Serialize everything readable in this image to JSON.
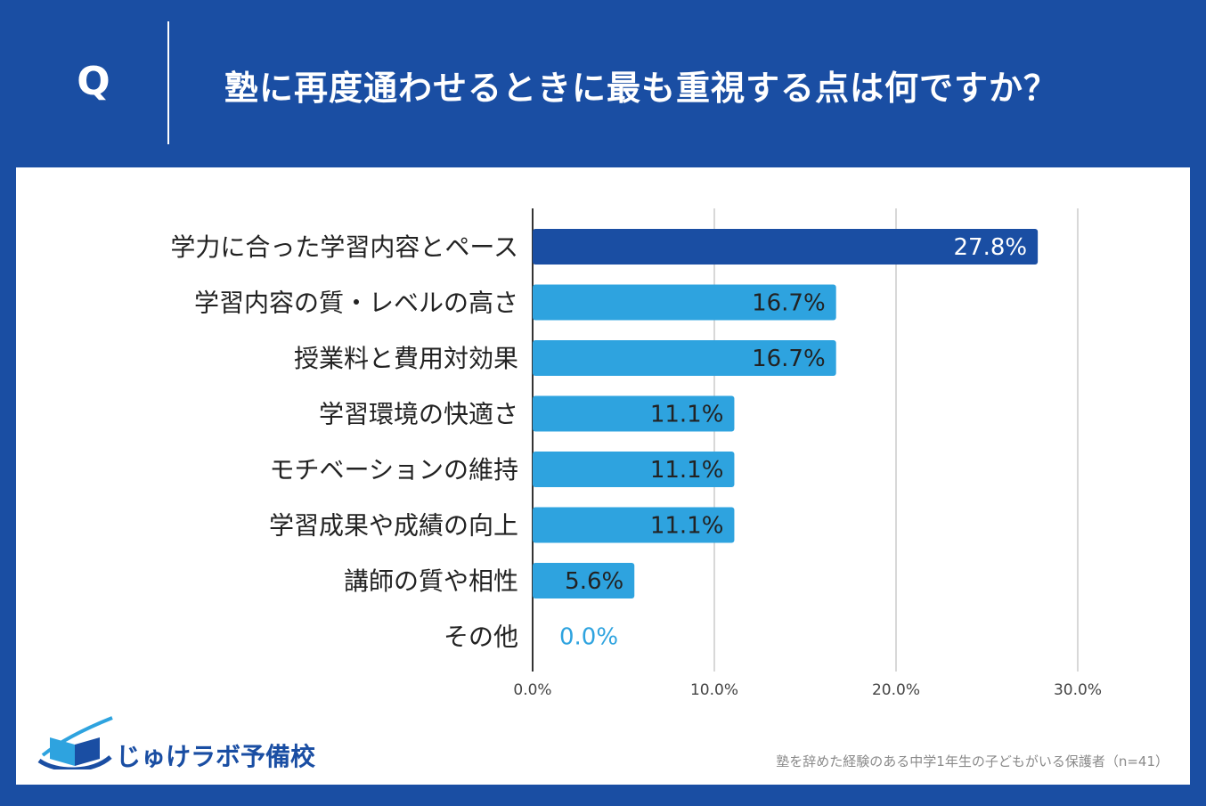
{
  "header": {
    "q_label": "Q",
    "question": "塾に再度通わせるときに最も重視する点は何ですか？"
  },
  "chart_data": {
    "type": "bar",
    "orientation": "horizontal",
    "categories": [
      "学力に合った学習内容とペース",
      "学習内容の質・レベルの高さ",
      "授業料と費用対効果",
      "学習環境の快適さ",
      "モチベーションの維持",
      "学習成果や成績の向上",
      "講師の質や相性",
      "その他"
    ],
    "values": [
      27.8,
      16.7,
      16.7,
      11.1,
      11.1,
      11.1,
      5.6,
      0.0
    ],
    "value_labels": [
      "27.8%",
      "16.7%",
      "16.7%",
      "11.1%",
      "11.1%",
      "11.1%",
      "5.6%",
      "0.0%"
    ],
    "xlim": [
      0,
      30
    ],
    "xticks": [
      0,
      10,
      20,
      30
    ],
    "xtick_labels": [
      "0.0%",
      "10.0%",
      "20.0%",
      "30.0%"
    ],
    "grid": true,
    "colors": {
      "highlight": "#1a4ea3",
      "default": "#2ea3df",
      "label_dark": "#222222",
      "label_light": "#ffffff",
      "zero_label": "#2ea3df"
    }
  },
  "footer": {
    "logo_text": "じゅけラボ予備校",
    "note": "塾を辞めた経験のある中学1年生の子どもがいる保護者（n=41）"
  }
}
